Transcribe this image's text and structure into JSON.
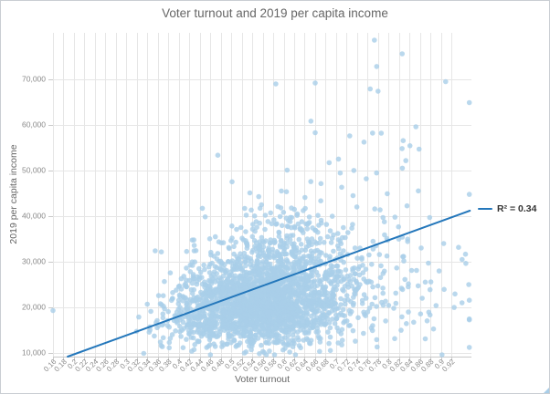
{
  "chart_data": {
    "type": "scatter",
    "title": "Voter turnout and 2019 per capita income",
    "xlabel": "Voter turnout",
    "ylabel": "2019 per capita income",
    "grid": true,
    "legend": {
      "label": "R² = 0.34",
      "position": "right"
    },
    "x_ticks": [
      "0.16",
      "0.18",
      "0.2",
      "0.22",
      "0.24",
      "0.26",
      "0.28",
      "0.3",
      "0.32",
      "0.34",
      "0.36",
      "0.38",
      "0.4",
      "0.42",
      "0.44",
      "0.46",
      "0.48",
      "0.5",
      "0.52",
      "0.54",
      "0.56",
      "0.58",
      "0.6",
      "0.62",
      "0.64",
      "0.66",
      "0.68",
      "0.7",
      "0.72",
      "0.74",
      "0.76",
      "0.78",
      "0.8",
      "0.82",
      "0.84",
      "0.86",
      "0.88",
      "0.9",
      "0.92"
    ],
    "x_tick_values": [
      0.16,
      0.18,
      0.2,
      0.22,
      0.24,
      0.26,
      0.28,
      0.3,
      0.32,
      0.34,
      0.36,
      0.38,
      0.4,
      0.42,
      0.44,
      0.46,
      0.48,
      0.5,
      0.52,
      0.54,
      0.56,
      0.58,
      0.6,
      0.62,
      0.64,
      0.66,
      0.68,
      0.7,
      0.72,
      0.74,
      0.76,
      0.78,
      0.8,
      0.82,
      0.84,
      0.86,
      0.88,
      0.9,
      0.92
    ],
    "y_ticks": [
      "10,000",
      "20,000",
      "30,000",
      "40,000",
      "50,000",
      "60,000",
      "70,000"
    ],
    "y_tick_values": [
      10000,
      20000,
      30000,
      40000,
      50000,
      60000,
      70000
    ],
    "x_range": [
      0.16,
      0.958
    ],
    "y_range": [
      9200,
      80200
    ],
    "colors": {
      "point": "#a9cee8",
      "point_opacity": 0.8,
      "trendline": "#2477bb",
      "gridline": "#e6e6e6",
      "axis": "#c9c9c9",
      "tick_label": "#8a8a8a",
      "title_text": "#666666"
    },
    "trendline": {
      "x1": 0.188,
      "y1": 9200,
      "x2": 0.955,
      "y2": 41200,
      "width": 2,
      "r_squared": 0.34
    },
    "scatter": {
      "description": "Dense fan-shaped cloud of ~2600 county points; income spread widens as turnout rises",
      "n": 2600,
      "seed": 1337,
      "marker_radius": 2.8,
      "x_mixture": [
        {
          "weight": 0.85,
          "mean": 0.555,
          "sd": 0.08
        },
        {
          "weight": 0.15,
          "mean": 0.68,
          "sd": 0.11
        }
      ],
      "x_clip": [
        0.161,
        0.954
      ],
      "y_model": {
        "t_from": 0.3,
        "t_to": 0.95,
        "median_low": 17000,
        "median_high": 29000,
        "log_sigma_low": 0.18,
        "log_sigma_high": 0.42
      },
      "y_clip": [
        9600,
        79000
      ],
      "notable_points": [
        [
          0.16,
          19300
        ],
        [
          0.333,
          9900
        ],
        [
          0.585,
          69000
        ],
        [
          0.66,
          69200
        ],
        [
          0.773,
          78600
        ],
        [
          0.826,
          75600
        ],
        [
          0.765,
          67900
        ],
        [
          0.78,
          67400
        ],
        [
          0.852,
          59600
        ],
        [
          0.905,
          34000
        ],
        [
          0.953,
          25000
        ],
        [
          0.94,
          21000
        ],
        [
          0.726,
          57600
        ],
        [
          0.66,
          58300
        ],
        [
          0.786,
          58200
        ]
      ]
    }
  }
}
